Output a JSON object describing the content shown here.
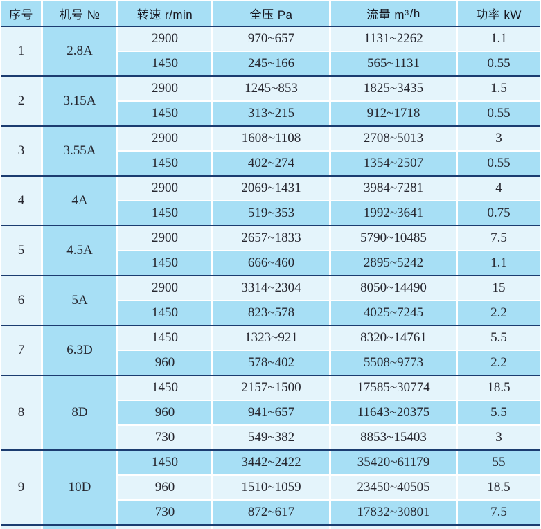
{
  "colors": {
    "row_light": "#E4F4FB",
    "row_medium": "#A7DFF5",
    "separator_line": "#1B3C70",
    "text": "#26262E"
  },
  "header": {
    "seq": "序号",
    "model": "机号 №",
    "speed": "转速 r/min",
    "pressure": "全压 Pa",
    "flow_prefix": "流量 m",
    "flow_sup": "3",
    "flow_suffix": "/h",
    "power": "功率 kW"
  },
  "groups": [
    {
      "seq": "1",
      "model": "2.8A",
      "rows": [
        {
          "speed": "2900",
          "pressure": "970~657",
          "flow": "1131~2262",
          "power": "1.1"
        },
        {
          "speed": "1450",
          "pressure": "245~166",
          "flow": "565~1131",
          "power": "0.55"
        }
      ]
    },
    {
      "seq": "2",
      "model": "3.15A",
      "rows": [
        {
          "speed": "2900",
          "pressure": "1245~853",
          "flow": "1825~3435",
          "power": "1.5"
        },
        {
          "speed": "1450",
          "pressure": "313~215",
          "flow": "912~1718",
          "power": "0.55"
        }
      ]
    },
    {
      "seq": "3",
      "model": "3.55A",
      "rows": [
        {
          "speed": "2900",
          "pressure": "1608~1108",
          "flow": "2708~5013",
          "power": "3"
        },
        {
          "speed": "1450",
          "pressure": "402~274",
          "flow": "1354~2507",
          "power": "0.55"
        }
      ]
    },
    {
      "seq": "4",
      "model": "4A",
      "rows": [
        {
          "speed": "2900",
          "pressure": "2069~1431",
          "flow": "3984~7281",
          "power": "4"
        },
        {
          "speed": "1450",
          "pressure": "519~353",
          "flow": "1992~3641",
          "power": "0.75"
        }
      ]
    },
    {
      "seq": "5",
      "model": "4.5A",
      "rows": [
        {
          "speed": "2900",
          "pressure": "2657~1833",
          "flow": "5790~10485",
          "power": "7.5"
        },
        {
          "speed": "1450",
          "pressure": "666~460",
          "flow": "2895~5242",
          "power": "1.1"
        }
      ]
    },
    {
      "seq": "6",
      "model": "5A",
      "rows": [
        {
          "speed": "2900",
          "pressure": "3314~2304",
          "flow": "8050~14490",
          "power": "15"
        },
        {
          "speed": "1450",
          "pressure": "823~578",
          "flow": "4025~7245",
          "power": "2.2"
        }
      ]
    },
    {
      "seq": "7",
      "model": "6.3D",
      "rows": [
        {
          "speed": "1450",
          "pressure": "1323~921",
          "flow": "8320~14761",
          "power": "5.5"
        },
        {
          "speed": "960",
          "pressure": "578~402",
          "flow": "5508~9773",
          "power": "2.2"
        }
      ]
    },
    {
      "seq": "8",
      "model": "8D",
      "rows": [
        {
          "speed": "1450",
          "pressure": "2157~1500",
          "flow": "17585~30774",
          "power": "18.5"
        },
        {
          "speed": "960",
          "pressure": "941~657",
          "flow": "11643~20375",
          "power": "5.5"
        },
        {
          "speed": "730",
          "pressure": "549~382",
          "flow": "8853~15403",
          "power": "3"
        }
      ]
    },
    {
      "seq": "9",
      "model": "10D",
      "rows": [
        {
          "speed": "1450",
          "pressure": "3442~2422",
          "flow": "35420~61179",
          "power": "55"
        },
        {
          "speed": "960",
          "pressure": "1510~1059",
          "flow": "23450~40505",
          "power": "18.5"
        },
        {
          "speed": "730",
          "pressure": "872~617",
          "flow": "17832~30801",
          "power": "7.5"
        }
      ]
    }
  ]
}
